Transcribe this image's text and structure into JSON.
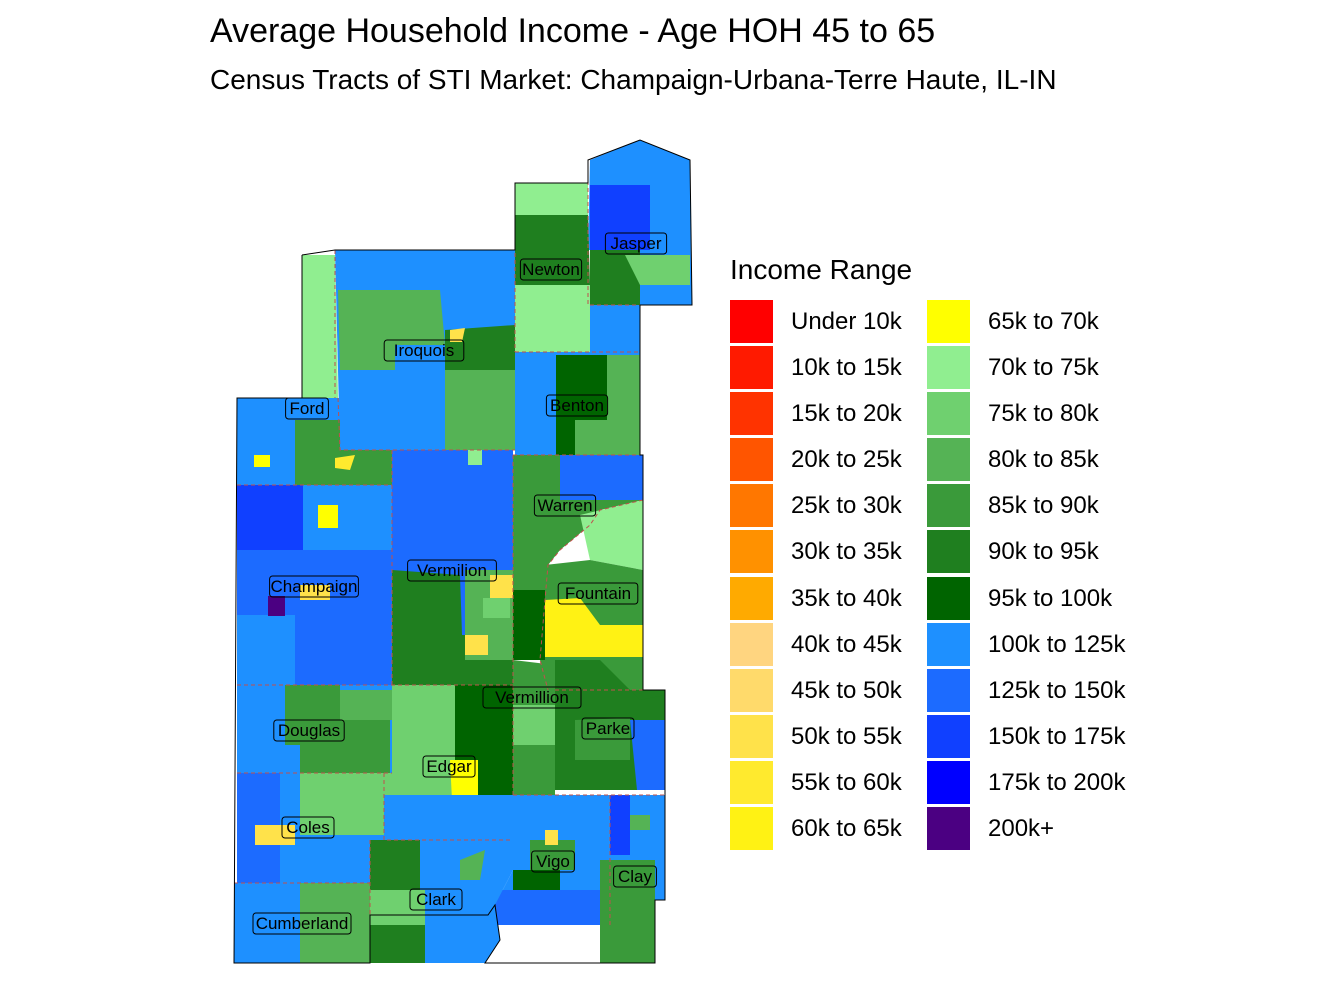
{
  "title": "Average Household Income - Age HOH 45 to 65",
  "subtitle": "Census Tracts of STI Market: Champaign-Urbana-Terre Haute, IL-IN",
  "legend": {
    "title": "Income Range",
    "items": [
      {
        "label": "Under 10k",
        "color": "#FF0000"
      },
      {
        "label": "10k to 15k",
        "color": "#FF1A00"
      },
      {
        "label": "15k to 20k",
        "color": "#FF3300"
      },
      {
        "label": "20k to 25k",
        "color": "#FF5500"
      },
      {
        "label": "25k to 30k",
        "color": "#FF7700"
      },
      {
        "label": "30k to 35k",
        "color": "#FF9100"
      },
      {
        "label": "35k to 40k",
        "color": "#FFAA00"
      },
      {
        "label": "40k to 45k",
        "color": "#FFD580"
      },
      {
        "label": "45k to 50k",
        "color": "#FFDA6B"
      },
      {
        "label": "50k to 55k",
        "color": "#FFE24A"
      },
      {
        "label": "55k to 60k",
        "color": "#FFEA2E"
      },
      {
        "label": "60k to 65k",
        "color": "#FFF214"
      },
      {
        "label": "65k to 70k",
        "color": "#FFFF00"
      },
      {
        "label": "70k to 75k",
        "color": "#90EE90"
      },
      {
        "label": "75k to 80k",
        "color": "#6FD06F"
      },
      {
        "label": "80k to 85k",
        "color": "#55B355"
      },
      {
        "label": "85k to 90k",
        "color": "#3A9A3A"
      },
      {
        "label": "90k to 95k",
        "color": "#1F7F1F"
      },
      {
        "label": "95k to 100k",
        "color": "#006400"
      },
      {
        "label": "100k to 125k",
        "color": "#1E90FF"
      },
      {
        "label": "125k to 150k",
        "color": "#1C6BFF"
      },
      {
        "label": "150k to 175k",
        "color": "#1040FF"
      },
      {
        "label": "175k to 200k",
        "color": "#0000FF"
      },
      {
        "label": "200k+",
        "color": "#4B0082"
      }
    ]
  },
  "counties": [
    "Jasper",
    "Newton",
    "Iroquois",
    "Ford",
    "Benton",
    "Warren",
    "Champaign",
    "Vermilion",
    "Fountain",
    "Vermillion",
    "Douglas",
    "Parke",
    "Edgar",
    "Coles",
    "Vigo",
    "Clay",
    "Clark",
    "Cumberland"
  ],
  "boundary_color": "#C0504D"
}
